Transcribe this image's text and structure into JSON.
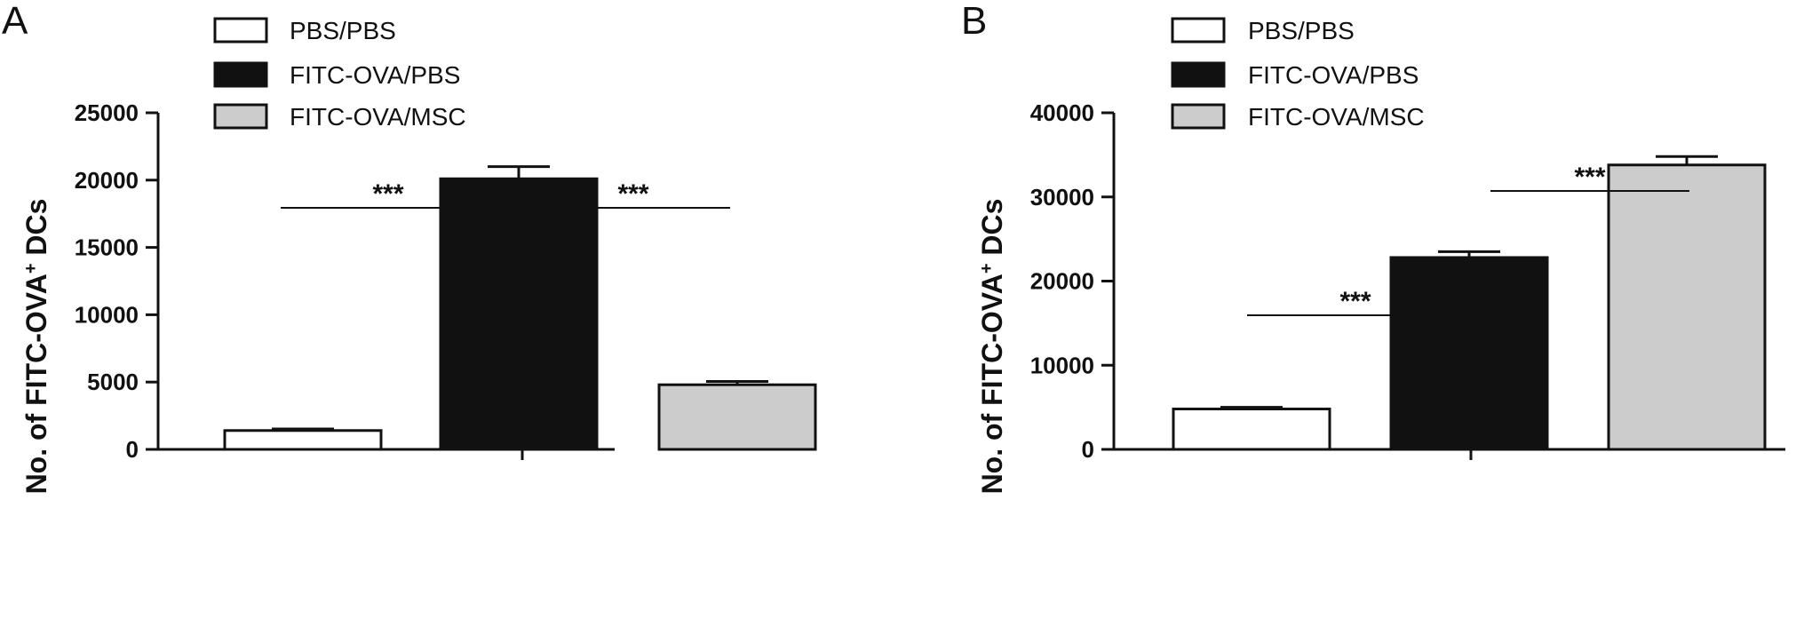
{
  "chart_data": [
    {
      "type": "bar",
      "panel": "A",
      "categories": [
        "PBS/PBS",
        "FITC-OVA/PBS",
        "FITC-OVA/MSC"
      ],
      "values": [
        1400,
        20100,
        4800
      ],
      "errors": [
        120,
        900,
        250
      ],
      "colors": [
        "#ffffff",
        "#111111",
        "#cccccc"
      ],
      "legend": [
        "PBS/PBS",
        "FITC-OVA/PBS",
        "FITC-OVA/MSC"
      ],
      "ylabel": "No. of FITC-OVA",
      "ylabel_sup": "+",
      "ylabel_suffix": " DCs",
      "ylim": [
        0,
        25000
      ],
      "yticks": [
        0,
        5000,
        10000,
        15000,
        20000,
        25000
      ],
      "significance": [
        {
          "from": 0,
          "to": 1,
          "label": "***"
        },
        {
          "from": 1,
          "to": 2,
          "label": "***"
        }
      ]
    },
    {
      "type": "bar",
      "panel": "B",
      "categories": [
        "PBS/PBS",
        "FITC-OVA/PBS",
        "FITC-OVA/MSC"
      ],
      "values": [
        4800,
        22800,
        33800
      ],
      "errors": [
        200,
        700,
        1000
      ],
      "colors": [
        "#ffffff",
        "#111111",
        "#cccccc"
      ],
      "legend": [
        "PBS/PBS",
        "FITC-OVA/PBS",
        "FITC-OVA/MSC"
      ],
      "ylabel": "No. of FITC-OVA",
      "ylabel_sup": "+",
      "ylabel_suffix": " DCs",
      "ylim": [
        0,
        40000
      ],
      "yticks": [
        0,
        10000,
        20000,
        30000,
        40000
      ],
      "significance": [
        {
          "from": 0,
          "to": 1,
          "label": "***"
        },
        {
          "from": 1,
          "to": 2,
          "label": "***"
        }
      ]
    }
  ]
}
